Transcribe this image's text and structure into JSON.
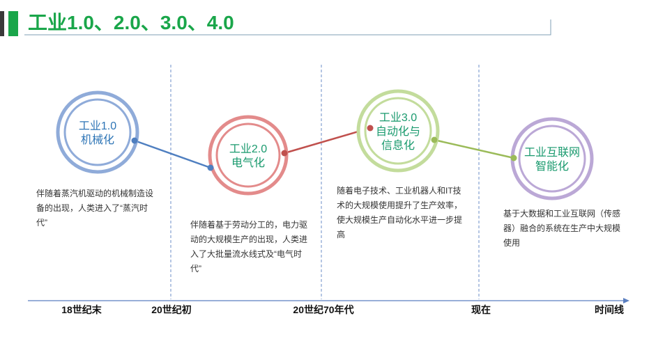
{
  "title": "工业1.0、2.0、3.0、4.0",
  "stages": [
    {
      "name": [
        "工业1.0",
        "机械化"
      ],
      "description": [
        "伴随着蒸汽机驱动的机械制造设",
        "备的出现，人类进入了“蒸汽时",
        "代”"
      ]
    },
    {
      "name": [
        "工业2.0",
        "电气化"
      ],
      "description": [
        "伴随着基于劳动分工的，电力驱",
        "动的大规模生产的出现，人类进",
        "入了大批量流水线式及“电气时",
        "代”"
      ]
    },
    {
      "name": [
        "工业3.0",
        "自动化与",
        "信息化"
      ],
      "description": [
        "随着电子技术、工业机器人和IT技",
        "术的大规模使用提升了生产效率，",
        "使大规模生产自动化水平进一步提",
        "高"
      ]
    },
    {
      "name": [
        "工业互联网",
        "智能化"
      ],
      "description": [
        "基于大数据和工业互联网（传感",
        "器）融合的系统在生产中大规模",
        "使用"
      ]
    }
  ],
  "timeline": [
    "18世纪末",
    "20世纪初",
    "20世纪70年代",
    "现在",
    "时间线"
  ]
}
